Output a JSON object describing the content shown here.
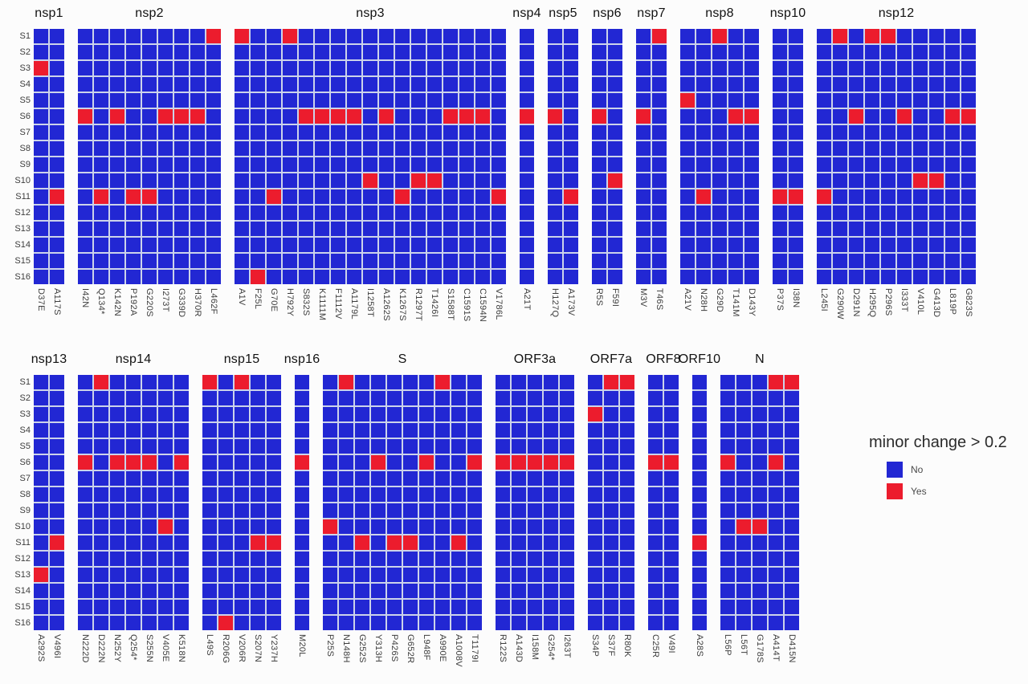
{
  "figure": {
    "legend": {
      "title": "minor change > 0.2",
      "entries": [
        {
          "label": "No",
          "value": "no"
        },
        {
          "label": "Yes",
          "value": "yes"
        }
      ]
    }
  },
  "colors": {
    "no": "#2227d3",
    "yes": "#ec1c2d"
  },
  "chart_data": {
    "type": "heatmap",
    "value_meaning": "minor change > 0.2 (No/Yes)",
    "rows": [
      "S1",
      "S2",
      "S3",
      "S4",
      "S5",
      "S6",
      "S7",
      "S8",
      "S9",
      "S10",
      "S11",
      "S12",
      "S13",
      "S14",
      "S15",
      "S16"
    ],
    "panel_rows": [
      [
        {
          "name": "nsp1",
          "columns": [
            "D37E",
            "A117S"
          ],
          "yes_cells": [
            [
              2,
              0
            ],
            [
              10,
              1
            ]
          ]
        },
        {
          "name": "nsp2",
          "columns": [
            "I42N",
            "Q134*",
            "K142N",
            "P192A",
            "G220S",
            "I273T",
            "G339D",
            "H370R",
            "L462F"
          ],
          "yes_cells": [
            [
              0,
              8
            ],
            [
              5,
              0
            ],
            [
              5,
              2
            ],
            [
              5,
              5
            ],
            [
              5,
              6
            ],
            [
              5,
              7
            ],
            [
              10,
              1
            ],
            [
              10,
              3
            ],
            [
              10,
              4
            ]
          ]
        },
        {
          "name": "nsp3",
          "columns": [
            "A1V",
            "F25L",
            "G70E",
            "H792Y",
            "S832S",
            "K1111M",
            "F1112V",
            "A1179L",
            "I1258T",
            "A1262S",
            "K1267S",
            "R1297T",
            "T1426I",
            "S1588T",
            "C1591S",
            "C1594N",
            "V1786L"
          ],
          "yes_cells": [
            [
              0,
              0
            ],
            [
              0,
              3
            ],
            [
              5,
              4
            ],
            [
              5,
              5
            ],
            [
              5,
              6
            ],
            [
              5,
              7
            ],
            [
              5,
              9
            ],
            [
              5,
              13
            ],
            [
              5,
              14
            ],
            [
              5,
              15
            ],
            [
              9,
              8
            ],
            [
              9,
              11
            ],
            [
              9,
              12
            ],
            [
              10,
              2
            ],
            [
              10,
              10
            ],
            [
              10,
              16
            ],
            [
              15,
              1
            ]
          ]
        },
        {
          "name": "nsp4",
          "columns": [
            "A21T"
          ],
          "yes_cells": [
            [
              5,
              0
            ]
          ]
        },
        {
          "name": "nsp5",
          "columns": [
            "H127Q",
            "A173V"
          ],
          "yes_cells": [
            [
              5,
              0
            ],
            [
              10,
              1
            ]
          ]
        },
        {
          "name": "nsp6",
          "columns": [
            "R5S",
            "F59I"
          ],
          "yes_cells": [
            [
              5,
              0
            ],
            [
              9,
              1
            ]
          ]
        },
        {
          "name": "nsp7",
          "columns": [
            "M3V",
            "T46S"
          ],
          "yes_cells": [
            [
              0,
              1
            ],
            [
              5,
              0
            ]
          ]
        },
        {
          "name": "nsp8",
          "columns": [
            "A21V",
            "N28H",
            "G29D",
            "T141M",
            "D143Y"
          ],
          "yes_cells": [
            [
              0,
              2
            ],
            [
              4,
              0
            ],
            [
              5,
              3
            ],
            [
              5,
              4
            ],
            [
              10,
              1
            ]
          ]
        },
        {
          "name": "nsp10",
          "columns": [
            "P37S",
            "I38N"
          ],
          "yes_cells": [
            [
              10,
              0
            ],
            [
              10,
              1
            ]
          ]
        },
        {
          "name": "nsp12",
          "columns": [
            "L245I",
            "G290W",
            "D291N",
            "H295Q",
            "P296S",
            "I333T",
            "V410L",
            "G413D",
            "L819P",
            "G823S"
          ],
          "yes_cells": [
            [
              0,
              1
            ],
            [
              0,
              3
            ],
            [
              0,
              4
            ],
            [
              5,
              2
            ],
            [
              5,
              5
            ],
            [
              5,
              8
            ],
            [
              5,
              9
            ],
            [
              9,
              6
            ],
            [
              9,
              7
            ],
            [
              10,
              0
            ]
          ]
        }
      ],
      [
        {
          "name": "nsp13",
          "columns": [
            "A292S",
            "V496I"
          ],
          "yes_cells": [
            [
              10,
              1
            ],
            [
              12,
              0
            ]
          ]
        },
        {
          "name": "nsp14",
          "columns": [
            "N222D",
            "D222N",
            "N252Y",
            "Q254*",
            "S255N",
            "V405E",
            "K518N"
          ],
          "yes_cells": [
            [
              0,
              1
            ],
            [
              5,
              0
            ],
            [
              5,
              2
            ],
            [
              5,
              3
            ],
            [
              5,
              4
            ],
            [
              5,
              6
            ],
            [
              9,
              5
            ]
          ]
        },
        {
          "name": "nsp15",
          "columns": [
            "L49S",
            "R206G",
            "V206R",
            "S207N",
            "Y237H"
          ],
          "yes_cells": [
            [
              0,
              0
            ],
            [
              0,
              2
            ],
            [
              10,
              3
            ],
            [
              10,
              4
            ],
            [
              15,
              1
            ]
          ]
        },
        {
          "name": "nsp16",
          "columns": [
            "M20L"
          ],
          "yes_cells": [
            [
              5,
              0
            ]
          ]
        },
        {
          "name": "S",
          "columns": [
            "P25S",
            "N148H",
            "G252S",
            "Y313H",
            "P426S",
            "G652R",
            "L948F",
            "A990E",
            "A1008V",
            "T1179I"
          ],
          "yes_cells": [
            [
              0,
              1
            ],
            [
              0,
              7
            ],
            [
              5,
              3
            ],
            [
              5,
              6
            ],
            [
              5,
              9
            ],
            [
              9,
              0
            ],
            [
              10,
              2
            ],
            [
              10,
              4
            ],
            [
              10,
              5
            ],
            [
              10,
              8
            ]
          ]
        },
        {
          "name": "ORF3a",
          "columns": [
            "R122S",
            "A143D",
            "I158M",
            "G254*",
            "I263T"
          ],
          "yes_cells": [
            [
              5,
              0
            ],
            [
              5,
              1
            ],
            [
              5,
              2
            ],
            [
              5,
              3
            ],
            [
              5,
              4
            ]
          ]
        },
        {
          "name": "ORF7a",
          "columns": [
            "S34P",
            "S37F",
            "R80K"
          ],
          "yes_cells": [
            [
              0,
              1
            ],
            [
              0,
              2
            ],
            [
              2,
              0
            ]
          ]
        },
        {
          "name": "ORF8",
          "columns": [
            "C25R",
            "V49I"
          ],
          "yes_cells": [
            [
              5,
              0
            ],
            [
              5,
              1
            ]
          ]
        },
        {
          "name": "ORF10",
          "columns": [
            "A28S"
          ],
          "yes_cells": [
            [
              10,
              0
            ]
          ]
        },
        {
          "name": "N",
          "columns": [
            "L56P",
            "L56T",
            "G178S",
            "A414T",
            "D415N"
          ],
          "yes_cells": [
            [
              0,
              3
            ],
            [
              0,
              4
            ],
            [
              5,
              0
            ],
            [
              5,
              3
            ],
            [
              9,
              1
            ],
            [
              9,
              2
            ]
          ]
        }
      ]
    ]
  }
}
